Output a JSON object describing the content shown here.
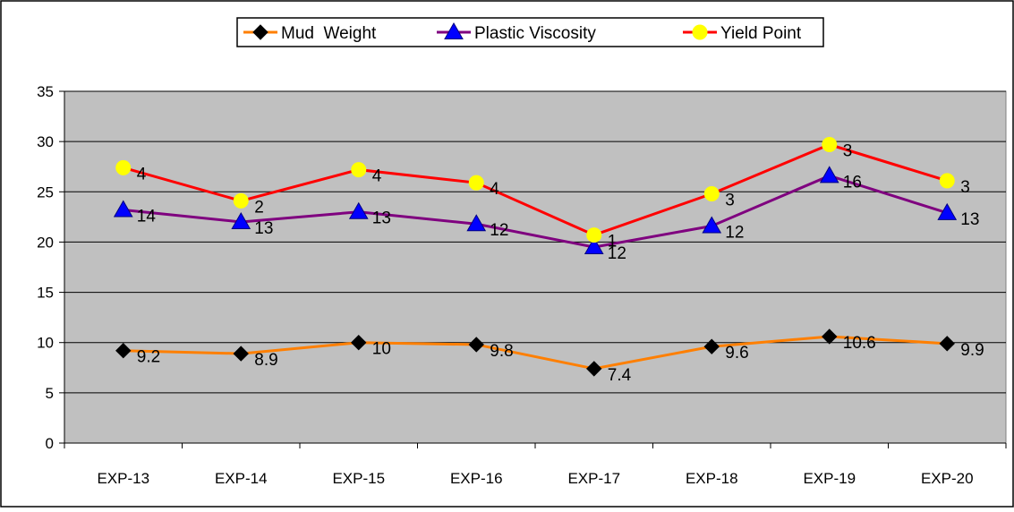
{
  "chart_data": {
    "type": "line",
    "title": "",
    "xlabel": "",
    "ylabel": "",
    "categories": [
      "EXP-13",
      "EXP-14",
      "EXP-15",
      "EXP-16",
      "EXP-17",
      "EXP-18",
      "EXP-19",
      "EXP-20"
    ],
    "ylim": [
      0,
      35
    ],
    "yticks": [
      0,
      5,
      10,
      15,
      20,
      25,
      30,
      35
    ],
    "grid": true,
    "legend": "top-center",
    "plot_background": "#c0c0c0",
    "series": [
      {
        "name": "Mud  Weight",
        "marker": "diamond",
        "line_color": "#ff7f00",
        "marker_color": "#000000",
        "values": [
          9.2,
          8.9,
          10,
          9.8,
          7.4,
          9.6,
          10.6,
          9.9
        ],
        "labels": [
          "9.2",
          "8.9",
          "10",
          "9.8",
          "7.4",
          "9.6",
          "10.6",
          "9.9"
        ]
      },
      {
        "name": "Plastic Viscosity",
        "marker": "triangle",
        "line_color": "#7f007f",
        "marker_color": "#0000ff",
        "values": [
          23.2,
          22.0,
          23.0,
          21.8,
          19.5,
          21.6,
          26.6,
          22.9
        ],
        "labels": [
          "14",
          "13",
          "13",
          "12",
          "12",
          "12",
          "16",
          "13"
        ]
      },
      {
        "name": "Yield Point",
        "marker": "circle",
        "line_color": "#ff0000",
        "marker_color": "#ffff00",
        "values": [
          27.4,
          24.1,
          27.2,
          25.9,
          20.7,
          24.8,
          29.7,
          26.1
        ],
        "labels": [
          "4",
          "2",
          "4",
          "4",
          "1",
          "3",
          "3",
          "3"
        ]
      }
    ]
  }
}
